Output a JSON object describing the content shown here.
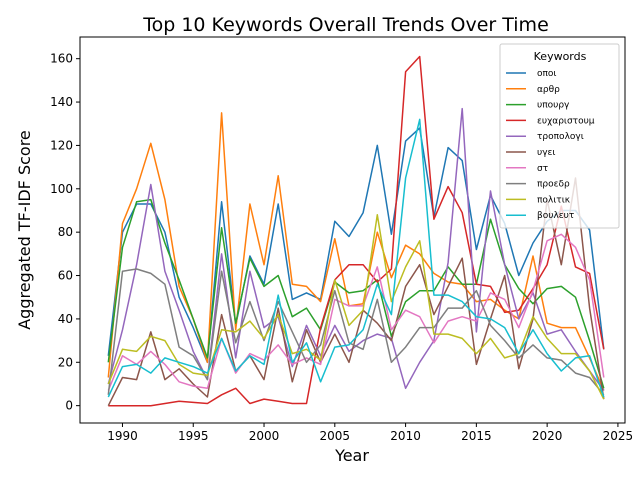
{
  "chart_data": {
    "type": "line",
    "title": "Top 10 Keywords Overall Trends Over Time",
    "xlabel": "Year",
    "ylabel": "Aggregated TF-IDF Score",
    "xlim": [
      1987,
      2025.5
    ],
    "ylim": [
      -8,
      170
    ],
    "xticks": [
      1990,
      1995,
      2000,
      2005,
      2010,
      2015,
      2020,
      2025
    ],
    "yticks": [
      0,
      20,
      40,
      60,
      80,
      100,
      120,
      140,
      160
    ],
    "grid": false,
    "legend": {
      "title": "Keywords",
      "position": "top-right"
    },
    "x": [
      1989,
      1990,
      1991,
      1992,
      1993,
      1994,
      1995,
      1996,
      1997,
      1998,
      1999,
      2000,
      2001,
      2002,
      2003,
      2004,
      2005,
      2006,
      2007,
      2008,
      2009,
      2010,
      2011,
      2012,
      2013,
      2014,
      2015,
      2016,
      2017,
      2018,
      2019,
      2020,
      2021,
      2022,
      2023,
      2024
    ],
    "series": [
      {
        "name": "οποι",
        "color": "#1f77b4",
        "values": [
          23,
          80,
          93,
          93,
          80,
          50,
          36,
          20,
          94,
          37,
          69,
          56,
          93,
          49,
          52,
          49,
          85,
          78,
          89,
          120,
          79,
          122,
          128,
          87,
          119,
          113,
          72,
          97,
          84,
          60,
          75,
          85,
          90,
          90,
          81,
          26
        ]
      },
      {
        "name": "αρθρ",
        "color": "#ff7f0e",
        "values": [
          13,
          84,
          100,
          121,
          95,
          55,
          40,
          20,
          135,
          35,
          93,
          65,
          106,
          56,
          55,
          48,
          77,
          46,
          47,
          80,
          59,
          74,
          70,
          61,
          57,
          56,
          48,
          49,
          44,
          40,
          69,
          38,
          36,
          36,
          22,
          7
        ]
      },
      {
        "name": "υπουργ",
        "color": "#2ca02c",
        "values": [
          20,
          73,
          94,
          95,
          75,
          58,
          40,
          22,
          82,
          38,
          68,
          55,
          60,
          41,
          45,
          35,
          57,
          52,
          53,
          58,
          32,
          48,
          53,
          53,
          64,
          56,
          56,
          86,
          65,
          54,
          47,
          54,
          55,
          50,
          30,
          8
        ]
      },
      {
        "name": "ευχαριστουμ",
        "color": "#d62728",
        "values": [
          0,
          0,
          0,
          0,
          1,
          2,
          1.5,
          1,
          5,
          8,
          1,
          3,
          2,
          1,
          1,
          36,
          58,
          65,
          65,
          57,
          63,
          154,
          161,
          86,
          101,
          89,
          56,
          55,
          43,
          44,
          54,
          65,
          92,
          64,
          61,
          26
        ]
      },
      {
        "name": "τροπολογι",
        "color": "#9467bd",
        "values": [
          10,
          35,
          65,
          102,
          62,
          44,
          25,
          12,
          70,
          22,
          62,
          36,
          41,
          18,
          37,
          23,
          37,
          25,
          30,
          33,
          31,
          8,
          20,
          30,
          66,
          137,
          34,
          99,
          65,
          40,
          52,
          33,
          35,
          25,
          16,
          7
        ]
      },
      {
        "name": "υγει",
        "color": "#8c564b",
        "values": [
          0,
          13,
          12,
          34,
          12,
          17,
          10,
          4,
          42,
          16,
          23,
          12,
          45,
          11,
          35,
          20,
          33,
          20,
          44,
          38,
          30,
          55,
          65,
          42,
          55,
          68,
          19,
          40,
          60,
          17,
          40,
          95,
          65,
          105,
          45,
          3
        ]
      },
      {
        "name": "στ",
        "color": "#e377c2",
        "values": [
          7,
          23,
          19,
          25,
          19,
          11,
          9,
          8,
          31,
          15,
          24,
          21,
          28,
          19,
          22,
          19,
          49,
          46,
          46,
          64,
          35,
          44,
          41,
          29,
          39,
          41,
          39,
          52,
          49,
          36,
          53,
          76,
          79,
          73,
          58,
          13
        ]
      },
      {
        "name": "προεδρ",
        "color": "#7f7f7f",
        "values": [
          5,
          62,
          63,
          61,
          56,
          27,
          23,
          12,
          62,
          29,
          48,
          30,
          48,
          34,
          20,
          28,
          53,
          29,
          26,
          49,
          20,
          27,
          36,
          36,
          45,
          45,
          53,
          37,
          30,
          22,
          28,
          22,
          21,
          15,
          13,
          5
        ]
      },
      {
        "name": "πολιτικ",
        "color": "#bcbd22",
        "values": [
          10,
          26,
          25,
          32,
          30,
          19,
          15,
          14,
          35,
          34,
          39,
          31,
          42,
          24,
          26,
          21,
          58,
          37,
          44,
          88,
          48,
          64,
          76,
          33,
          33,
          31,
          24,
          31,
          22,
          24,
          41,
          31,
          24,
          24,
          16,
          3
        ]
      },
      {
        "name": "βουλευτ",
        "color": "#17becf",
        "values": [
          4,
          18,
          19,
          15,
          22,
          20,
          18,
          15,
          31,
          16,
          23,
          19,
          51,
          20,
          29,
          11,
          27,
          28,
          35,
          56,
          42,
          105,
          132,
          51,
          51,
          48,
          41,
          40,
          36,
          24,
          35,
          24,
          16,
          22,
          23,
          4
        ]
      }
    ]
  }
}
